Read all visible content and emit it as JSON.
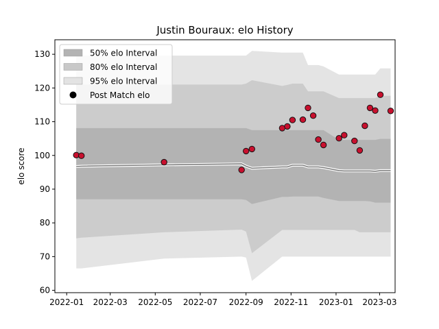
{
  "chart_data": {
    "type": "line",
    "title": "Justin Bouraux: elo History",
    "xlabel": "",
    "ylabel": "elo score",
    "x_ticks": [
      "2022-01",
      "2022-03",
      "2022-05",
      "2022-07",
      "2022-09",
      "2022-11",
      "2023-01",
      "2023-03"
    ],
    "y_ticks": [
      60,
      70,
      80,
      90,
      100,
      110,
      120,
      130
    ],
    "xlim": [
      "2021-12-16",
      "2023-03-22"
    ],
    "ylim": [
      59.3,
      134.3
    ],
    "grid": false,
    "legend_position": "top-left",
    "legend": [
      {
        "label": "50% elo Interval",
        "color": "#b3b3b3"
      },
      {
        "label": "80% elo Interval",
        "color": "#c8c8c8"
      },
      {
        "label": "95% elo Interval",
        "color": "#e3e3e3"
      },
      {
        "label": "Post Match elo",
        "color": "#000000"
      }
    ],
    "colors": {
      "band_50": "#b3b3b3",
      "band_80": "#cccccc",
      "band_95": "#e4e4e4",
      "mean_line": "#808080",
      "mean_halo": "#ffffff",
      "point_fill": "#c8102e",
      "point_edge": "#111111"
    },
    "series": [
      {
        "x": [
          "2022-01-14",
          "2022-01-21",
          "2022-05-13",
          "2022-08-26",
          "2022-09-01",
          "2022-09-09",
          "2022-10-20",
          "2022-10-27",
          "2022-11-03",
          "2022-11-17",
          "2022-11-24",
          "2022-12-08",
          "2022-12-15",
          "2023-01-05",
          "2023-01-12",
          "2023-01-26",
          "2023-02-02",
          "2023-02-09",
          "2023-02-16",
          "2023-02-23",
          "2023-03-02",
          "2023-03-16"
        ],
        "mean": [
          96.7,
          96.8,
          97.2,
          97.5,
          96.8,
          96.2,
          96.6,
          96.6,
          97.1,
          97.1,
          96.6,
          96.6,
          96.4,
          95.5,
          95.4,
          95.4,
          95.4,
          95.4,
          95.4,
          95.3,
          95.5,
          95.5
        ],
        "p25": [
          87.0,
          87.0,
          87.0,
          87.0,
          86.8,
          85.6,
          87.7,
          87.7,
          87.8,
          87.8,
          87.8,
          87.8,
          87.4,
          86.5,
          86.5,
          86.5,
          86.5,
          86.5,
          86.4,
          86.0,
          86.0,
          86.0
        ],
        "p75": [
          108.1,
          108.1,
          108.1,
          108.1,
          108.1,
          107.5,
          107.5,
          107.5,
          107.5,
          107.5,
          107.5,
          107.5,
          107.5,
          104.6,
          104.6,
          104.6,
          104.6,
          104.6,
          104.6,
          104.6,
          104.9,
          104.9
        ],
        "p10": [
          75.4,
          75.6,
          77.2,
          78.0,
          77.4,
          71.0,
          77.9,
          77.9,
          77.9,
          77.9,
          77.9,
          77.9,
          77.9,
          77.9,
          77.9,
          77.9,
          77.2,
          77.2,
          77.2,
          77.2,
          77.2,
          77.2
        ],
        "p90": [
          121.0,
          121.0,
          121.0,
          121.0,
          121.3,
          122.3,
          120.6,
          120.9,
          121.3,
          121.3,
          119.0,
          119.0,
          119.0,
          117.0,
          117.0,
          117.0,
          117.0,
          117.0,
          117.0,
          117.0,
          117.7,
          117.7
        ],
        "p2_5": [
          66.5,
          66.5,
          69.4,
          70.0,
          69.7,
          62.8,
          70.0,
          70.0,
          70.0,
          70.0,
          70.0,
          70.0,
          70.0,
          70.0,
          70.0,
          70.0,
          70.0,
          70.0,
          70.0,
          70.0,
          70.0,
          70.0
        ],
        "p97_5": [
          129.6,
          129.6,
          129.6,
          129.6,
          129.6,
          131.0,
          130.5,
          130.5,
          130.5,
          130.5,
          126.8,
          126.8,
          126.4,
          124.0,
          124.0,
          124.0,
          124.0,
          124.0,
          124.0,
          124.0,
          125.8,
          125.8
        ]
      },
      {
        "name": "Post Match elo",
        "x": [
          "2022-01-14",
          "2022-01-21",
          "2022-05-13",
          "2022-08-26",
          "2022-09-01",
          "2022-09-09",
          "2022-10-20",
          "2022-10-27",
          "2022-11-03",
          "2022-11-17",
          "2022-11-24",
          "2022-12-01",
          "2022-12-08",
          "2022-12-15",
          "2023-01-05",
          "2023-01-12",
          "2023-01-26",
          "2023-02-02",
          "2023-02-09",
          "2023-02-16",
          "2023-02-23",
          "2023-03-02",
          "2023-03-16"
        ],
        "y": [
          100.1,
          99.9,
          98.0,
          95.7,
          101.3,
          101.9,
          108.1,
          108.6,
          110.5,
          110.6,
          114.1,
          111.8,
          104.7,
          103.1,
          105.1,
          106.0,
          104.3,
          101.5,
          108.8,
          114.1,
          113.3,
          118.0,
          113.2
        ]
      }
    ]
  }
}
